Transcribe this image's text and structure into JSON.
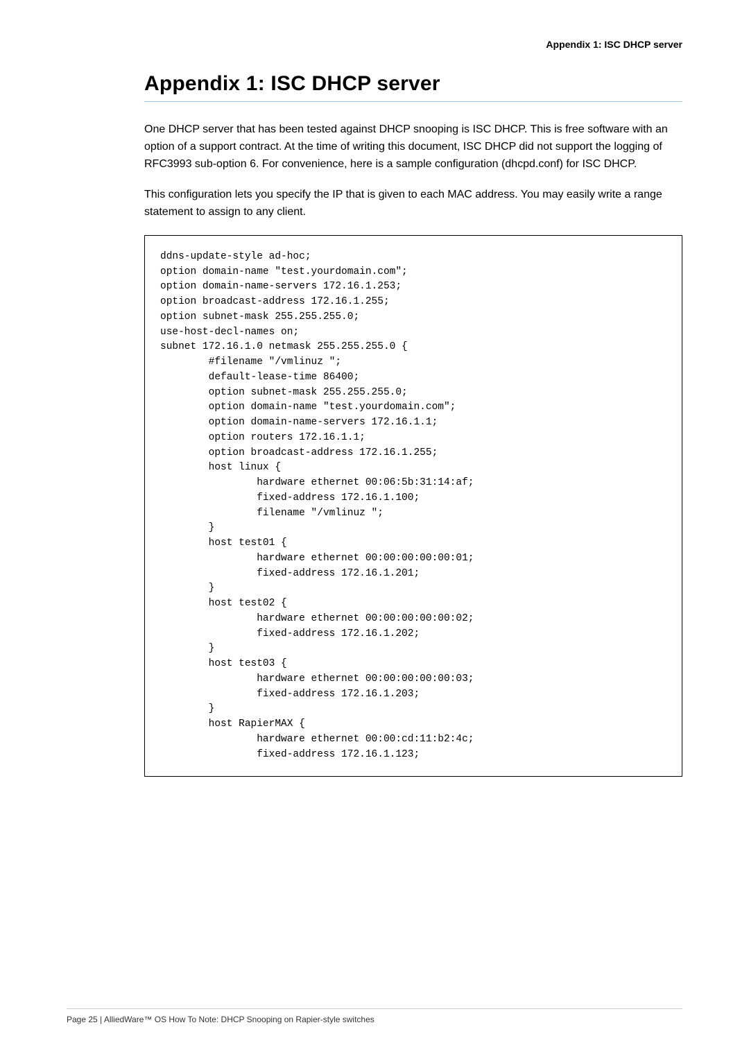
{
  "header": {
    "running_title": "Appendix 1: ISC DHCP server"
  },
  "title": "Appendix 1: ISC DHCP server",
  "paragraphs": {
    "p1": "One DHCP server that has been tested against DHCP snooping is ISC DHCP. This is free software with an option of a support contract. At the time of writing this document, ISC DHCP did not support the logging of RFC3993 sub-option 6. For convenience, here is a sample configuration (dhcpd.conf) for ISC DHCP.",
    "p2": "This configuration lets you specify the IP that is given to each MAC address. You may easily write a range statement to assign to any client."
  },
  "code": "ddns-update-style ad-hoc;\noption domain-name \"test.yourdomain.com\";\noption domain-name-servers 172.16.1.253;\noption broadcast-address 172.16.1.255;\noption subnet-mask 255.255.255.0;\nuse-host-decl-names on;\nsubnet 172.16.1.0 netmask 255.255.255.0 {\n        #filename \"/vmlinuz \";\n        default-lease-time 86400;\n        option subnet-mask 255.255.255.0;\n        option domain-name \"test.yourdomain.com\";\n        option domain-name-servers 172.16.1.1;\n        option routers 172.16.1.1;\n        option broadcast-address 172.16.1.255;\n        host linux {\n                hardware ethernet 00:06:5b:31:14:af;\n                fixed-address 172.16.1.100;\n                filename \"/vmlinuz \";\n        }\n        host test01 {\n                hardware ethernet 00:00:00:00:00:01;\n                fixed-address 172.16.1.201;\n        }\n        host test02 {\n                hardware ethernet 00:00:00:00:00:02;\n                fixed-address 172.16.1.202;\n        }\n        host test03 {\n                hardware ethernet 00:00:00:00:00:03;\n                fixed-address 172.16.1.203;\n        }\n        host RapierMAX {\n                hardware ethernet 00:00:cd:11:b2:4c;\n                fixed-address 172.16.1.123;",
  "footer": {
    "text": "Page 25 | AlliedWare™ OS How To Note: DHCP Snooping on Rapier-style switches"
  },
  "style": {
    "title_rule_color": "#9fc5e8",
    "code_border_color": "#000000",
    "footer_rule_color": "#cccccc",
    "background_color": "#ffffff",
    "body_font_size": 16,
    "code_font_size": 14.5,
    "title_font_size": 30
  }
}
